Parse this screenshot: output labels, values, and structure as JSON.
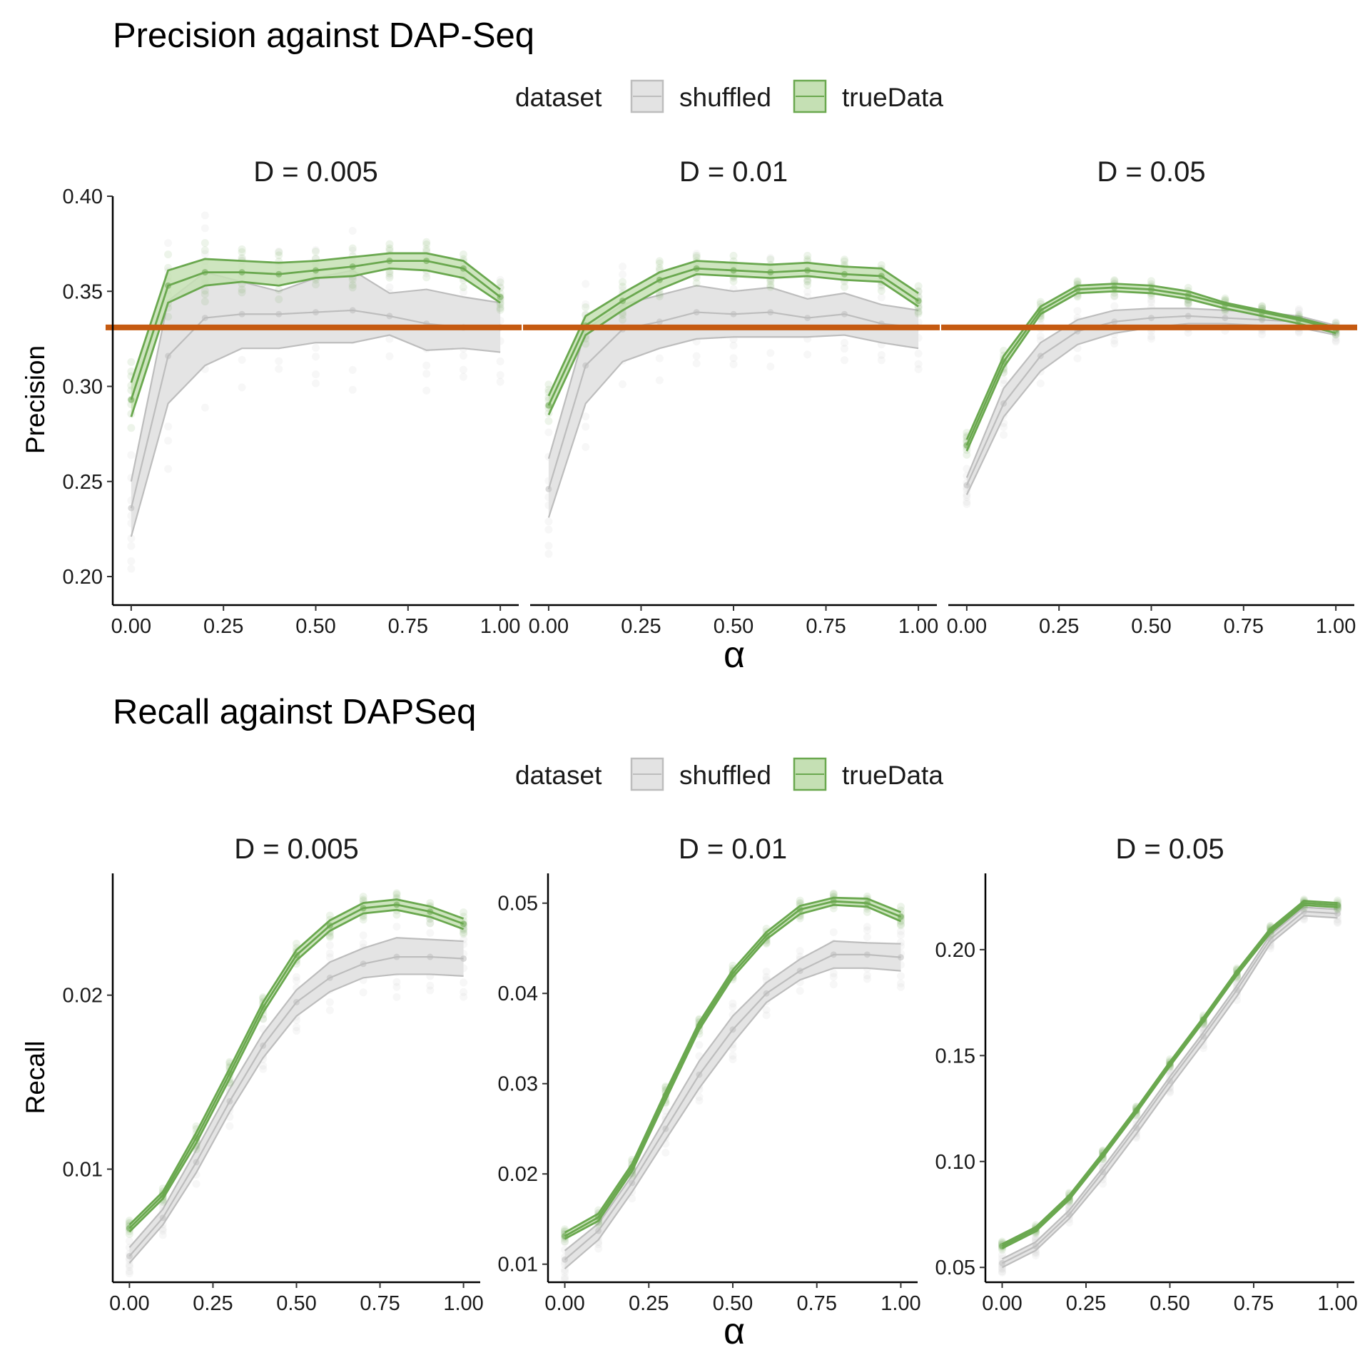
{
  "figure": {
    "top_title": "Precision against DAP-Seq",
    "bottom_title": "Recall against DAPSeq",
    "legend_title": "dataset",
    "legend_items": [
      "shuffled",
      "trueData"
    ],
    "x_axis_symbol": "α",
    "precision_label": "Precision",
    "recall_label": "Recall",
    "colors": {
      "shuffled_line": "#bdbdbd",
      "shuffled_fill": "#e3e3e3",
      "true_line": "#6aa84f",
      "true_fill": "#c5e0b4",
      "baseline": "#c55a11"
    }
  },
  "chart_data": [
    {
      "type": "line",
      "panel": "D = 0.005",
      "title": "Precision against DAP-Seq",
      "xlabel": "α",
      "ylabel": "Precision",
      "xlim": [
        -0.05,
        1.05
      ],
      "ylim": [
        0.185,
        0.4
      ],
      "x_ticks": [
        "0.00",
        "0.25",
        "0.50",
        "0.75",
        "1.00"
      ],
      "y_ticks": [
        "0.20",
        "0.25",
        "0.30",
        "0.35",
        "0.40"
      ],
      "x": [
        0,
        0.1,
        0.2,
        0.3,
        0.4,
        0.5,
        0.6,
        0.7,
        0.8,
        0.9,
        1.0
      ],
      "baseline": 0.331,
      "series": [
        {
          "name": "shuffled",
          "lower": [
            0.221,
            0.291,
            0.311,
            0.32,
            0.32,
            0.323,
            0.323,
            0.327,
            0.319,
            0.32,
            0.318
          ],
          "mid": [
            0.236,
            0.316,
            0.336,
            0.338,
            0.338,
            0.339,
            0.34,
            0.337,
            0.333,
            0.331,
            0.331
          ],
          "upper": [
            0.25,
            0.345,
            0.36,
            0.355,
            0.35,
            0.357,
            0.361,
            0.349,
            0.351,
            0.347,
            0.344
          ]
        },
        {
          "name": "trueData",
          "lower": [
            0.284,
            0.344,
            0.353,
            0.355,
            0.353,
            0.357,
            0.358,
            0.362,
            0.361,
            0.357,
            0.344
          ],
          "mid": [
            0.293,
            0.353,
            0.36,
            0.36,
            0.359,
            0.361,
            0.363,
            0.366,
            0.366,
            0.362,
            0.347
          ],
          "upper": [
            0.302,
            0.361,
            0.367,
            0.366,
            0.365,
            0.366,
            0.368,
            0.37,
            0.37,
            0.366,
            0.351
          ]
        }
      ]
    },
    {
      "type": "line",
      "panel": "D = 0.01",
      "title": "Precision against DAP-Seq",
      "xlabel": "α",
      "ylabel": "Precision",
      "xlim": [
        -0.05,
        1.05
      ],
      "ylim": [
        0.185,
        0.4
      ],
      "x_ticks": [
        "0.00",
        "0.25",
        "0.50",
        "0.75",
        "1.00"
      ],
      "y_ticks": [
        "0.20",
        "0.25",
        "0.30",
        "0.35",
        "0.40"
      ],
      "x": [
        0,
        0.1,
        0.2,
        0.3,
        0.4,
        0.5,
        0.6,
        0.7,
        0.8,
        0.9,
        1.0
      ],
      "baseline": 0.331,
      "series": [
        {
          "name": "shuffled",
          "lower": [
            0.231,
            0.291,
            0.313,
            0.32,
            0.325,
            0.326,
            0.326,
            0.326,
            0.327,
            0.323,
            0.32
          ],
          "mid": [
            0.246,
            0.311,
            0.33,
            0.334,
            0.339,
            0.338,
            0.339,
            0.336,
            0.338,
            0.333,
            0.331
          ],
          "upper": [
            0.262,
            0.33,
            0.343,
            0.348,
            0.353,
            0.35,
            0.352,
            0.346,
            0.349,
            0.343,
            0.34
          ]
        },
        {
          "name": "trueData",
          "lower": [
            0.285,
            0.327,
            0.34,
            0.351,
            0.359,
            0.358,
            0.357,
            0.358,
            0.356,
            0.355,
            0.342
          ],
          "mid": [
            0.29,
            0.332,
            0.345,
            0.356,
            0.362,
            0.361,
            0.36,
            0.361,
            0.359,
            0.358,
            0.345
          ],
          "upper": [
            0.295,
            0.337,
            0.349,
            0.36,
            0.366,
            0.365,
            0.364,
            0.365,
            0.363,
            0.362,
            0.349
          ]
        }
      ]
    },
    {
      "type": "line",
      "panel": "D = 0.05",
      "title": "Precision against DAP-Seq",
      "xlabel": "α",
      "ylabel": "Precision",
      "xlim": [
        -0.05,
        1.05
      ],
      "ylim": [
        0.185,
        0.4
      ],
      "x_ticks": [
        "0.00",
        "0.25",
        "0.50",
        "0.75",
        "1.00"
      ],
      "y_ticks": [
        "0.20",
        "0.25",
        "0.30",
        "0.35",
        "0.40"
      ],
      "x": [
        0,
        0.1,
        0.2,
        0.3,
        0.4,
        0.5,
        0.6,
        0.7,
        0.8,
        0.9,
        1.0
      ],
      "baseline": 0.331,
      "series": [
        {
          "name": "shuffled",
          "lower": [
            0.243,
            0.284,
            0.308,
            0.322,
            0.328,
            0.331,
            0.333,
            0.333,
            0.332,
            0.331,
            0.327
          ],
          "mid": [
            0.248,
            0.291,
            0.316,
            0.329,
            0.334,
            0.336,
            0.337,
            0.336,
            0.335,
            0.334,
            0.329
          ],
          "upper": [
            0.252,
            0.299,
            0.323,
            0.335,
            0.34,
            0.341,
            0.341,
            0.34,
            0.339,
            0.337,
            0.332
          ]
        },
        {
          "name": "trueData",
          "lower": [
            0.266,
            0.31,
            0.338,
            0.349,
            0.35,
            0.349,
            0.346,
            0.341,
            0.337,
            0.333,
            0.328
          ],
          "mid": [
            0.269,
            0.313,
            0.34,
            0.351,
            0.352,
            0.351,
            0.348,
            0.343,
            0.339,
            0.335,
            0.33
          ],
          "upper": [
            0.272,
            0.316,
            0.342,
            0.353,
            0.354,
            0.353,
            0.35,
            0.344,
            0.34,
            0.336,
            0.331
          ]
        }
      ]
    },
    {
      "type": "line",
      "panel": "D = 0.005",
      "title": "Recall against DAPSeq",
      "xlabel": "α",
      "ylabel": "Recall",
      "xlim": [
        -0.05,
        1.05
      ],
      "ylim": [
        0.0035,
        0.027
      ],
      "x_ticks": [
        "0.00",
        "0.25",
        "0.50",
        "0.75",
        "1.00"
      ],
      "y_ticks": [
        "0.01",
        "0.02"
      ],
      "x": [
        0,
        0.1,
        0.2,
        0.3,
        0.4,
        0.5,
        0.6,
        0.7,
        0.8,
        0.9,
        1.0
      ],
      "series": [
        {
          "name": "shuffled",
          "lower": [
            0.0046,
            0.0068,
            0.0098,
            0.0133,
            0.0164,
            0.0188,
            0.0202,
            0.021,
            0.0212,
            0.0212,
            0.0211
          ],
          "mid": [
            0.005,
            0.0072,
            0.0104,
            0.0139,
            0.0171,
            0.0196,
            0.021,
            0.0218,
            0.0222,
            0.0222,
            0.0221
          ],
          "upper": [
            0.0055,
            0.0077,
            0.0111,
            0.0146,
            0.0178,
            0.0203,
            0.0219,
            0.0227,
            0.0233,
            0.0232,
            0.0231
          ]
        },
        {
          "name": "trueData",
          "lower": [
            0.0064,
            0.0083,
            0.0115,
            0.0152,
            0.019,
            0.022,
            0.0237,
            0.0247,
            0.0249,
            0.0245,
            0.0238
          ],
          "mid": [
            0.0066,
            0.0085,
            0.0118,
            0.0155,
            0.0193,
            0.0223,
            0.024,
            0.025,
            0.0252,
            0.0248,
            0.0241
          ],
          "upper": [
            0.0068,
            0.0087,
            0.0121,
            0.0158,
            0.0196,
            0.0226,
            0.0243,
            0.0253,
            0.0255,
            0.0251,
            0.0244
          ]
        }
      ]
    },
    {
      "type": "line",
      "panel": "D = 0.01",
      "title": "Recall against DAPSeq",
      "xlabel": "α",
      "ylabel": "Recall",
      "xlim": [
        -0.05,
        1.05
      ],
      "ylim": [
        0.008,
        0.0533
      ],
      "x_ticks": [
        "0.00",
        "0.25",
        "0.50",
        "0.75",
        "1.00"
      ],
      "y_ticks": [
        "0.01",
        "0.02",
        "0.03",
        "0.04",
        "0.05"
      ],
      "x": [
        0,
        0.1,
        0.2,
        0.3,
        0.4,
        0.5,
        0.6,
        0.7,
        0.8,
        0.9,
        1.0
      ],
      "series": [
        {
          "name": "shuffled",
          "lower": [
            0.0095,
            0.0127,
            0.018,
            0.0238,
            0.0295,
            0.0345,
            0.039,
            0.0415,
            0.0428,
            0.0428,
            0.0425
          ],
          "mid": [
            0.0105,
            0.0137,
            0.019,
            0.025,
            0.031,
            0.036,
            0.04,
            0.0425,
            0.0443,
            0.0443,
            0.044
          ],
          "upper": [
            0.0115,
            0.0145,
            0.0198,
            0.0262,
            0.0325,
            0.0375,
            0.0412,
            0.0438,
            0.0458,
            0.0456,
            0.0455
          ]
        },
        {
          "name": "trueData",
          "lower": [
            0.0128,
            0.0148,
            0.0203,
            0.0282,
            0.036,
            0.0418,
            0.046,
            0.0488,
            0.0498,
            0.0496,
            0.048
          ],
          "mid": [
            0.0131,
            0.0152,
            0.0207,
            0.0287,
            0.0364,
            0.0422,
            0.0464,
            0.0493,
            0.0502,
            0.05,
            0.0485
          ],
          "upper": [
            0.0135,
            0.0156,
            0.0211,
            0.0291,
            0.0368,
            0.0426,
            0.0468,
            0.0497,
            0.0506,
            0.0505,
            0.049
          ]
        }
      ]
    },
    {
      "type": "line",
      "panel": "D = 0.05",
      "title": "Recall against DAPSeq",
      "xlabel": "α",
      "ylabel": "Recall",
      "xlim": [
        -0.05,
        1.05
      ],
      "ylim": [
        0.043,
        0.236
      ],
      "x_ticks": [
        "0.00",
        "0.25",
        "0.50",
        "0.75",
        "1.00"
      ],
      "y_ticks": [
        "0.05",
        "0.10",
        "0.15",
        "0.20"
      ],
      "x": [
        0,
        0.1,
        0.2,
        0.3,
        0.4,
        0.5,
        0.6,
        0.7,
        0.8,
        0.9,
        1.0
      ],
      "series": [
        {
          "name": "shuffled",
          "lower": [
            0.05,
            0.058,
            0.073,
            0.092,
            0.113,
            0.135,
            0.156,
            0.178,
            0.203,
            0.216,
            0.215
          ],
          "mid": [
            0.052,
            0.06,
            0.075,
            0.095,
            0.116,
            0.138,
            0.159,
            0.181,
            0.205,
            0.218,
            0.217
          ],
          "upper": [
            0.054,
            0.062,
            0.077,
            0.097,
            0.118,
            0.14,
            0.161,
            0.183,
            0.207,
            0.22,
            0.219
          ]
        },
        {
          "name": "trueData",
          "lower": [
            0.059,
            0.067,
            0.082,
            0.102,
            0.123,
            0.145,
            0.166,
            0.188,
            0.208,
            0.221,
            0.22
          ],
          "mid": [
            0.06,
            0.068,
            0.083,
            0.103,
            0.124,
            0.146,
            0.167,
            0.189,
            0.209,
            0.222,
            0.221
          ],
          "upper": [
            0.061,
            0.069,
            0.084,
            0.104,
            0.125,
            0.147,
            0.168,
            0.19,
            0.21,
            0.223,
            0.222
          ]
        }
      ]
    }
  ]
}
